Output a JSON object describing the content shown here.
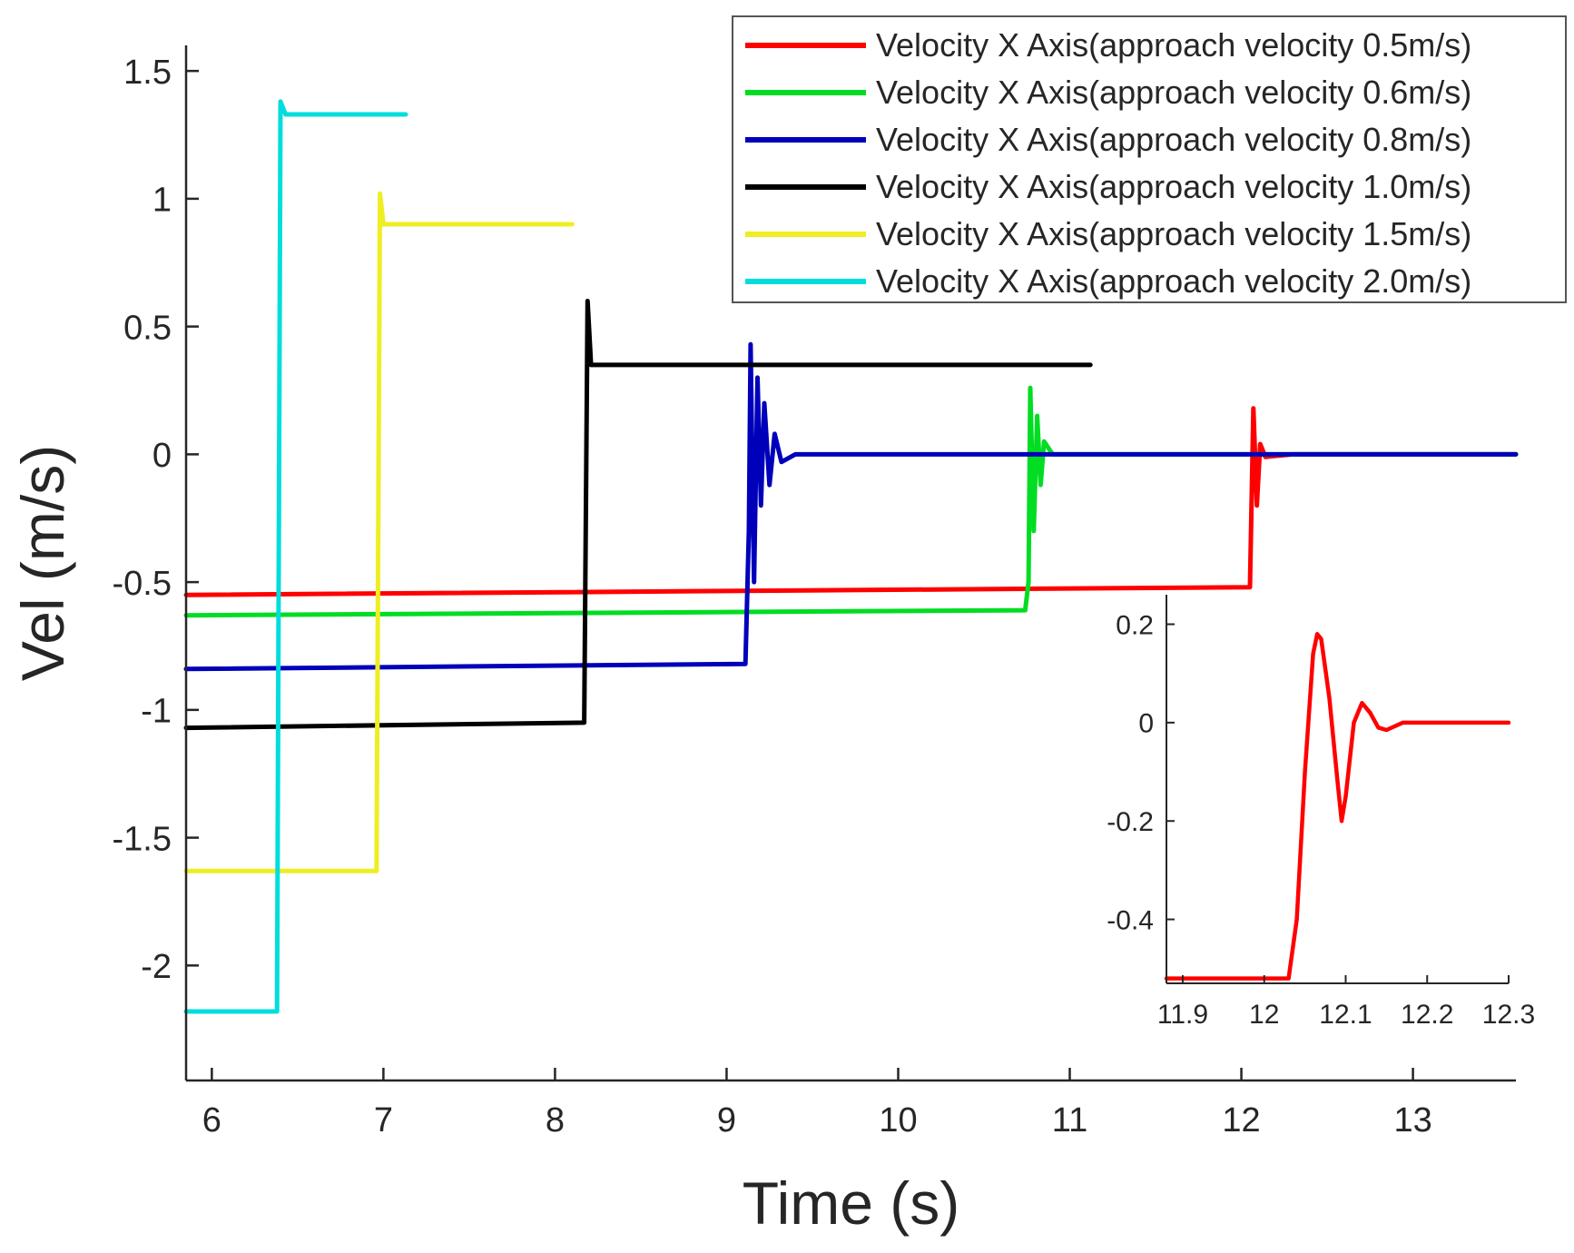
{
  "chart_data": [
    {
      "type": "line",
      "xlabel": "Time (s)",
      "ylabel": "Vel  (m/s)",
      "xlim": [
        5.85,
        13.6
      ],
      "ylim": [
        -2.45,
        1.6
      ],
      "xticks": [
        6,
        7,
        8,
        9,
        10,
        11,
        12,
        13
      ],
      "yticks": [
        1.5,
        1,
        0.5,
        0,
        -0.5,
        -1,
        -1.5,
        -2
      ],
      "xtick_labels": [
        "6",
        "7",
        "8",
        "9",
        "10",
        "11",
        "12",
        "13"
      ],
      "ytick_labels": [
        "1.5",
        "1",
        "0.5",
        "0",
        "-0.5",
        "-1",
        "-1.5",
        "-2"
      ],
      "legend_position": "top-right",
      "series": [
        {
          "name": "Velocity X Axis(approach velocity 0.5m/s)",
          "color": "#ff0000",
          "points": [
            [
              5.85,
              -0.55
            ],
            [
              12.05,
              -0.52
            ],
            [
              12.07,
              0.18
            ],
            [
              12.09,
              -0.2
            ],
            [
              12.11,
              0.04
            ],
            [
              12.14,
              -0.01
            ],
            [
              12.3,
              0.0
            ],
            [
              13.6,
              0.0
            ]
          ]
        },
        {
          "name": "Velocity X Axis(approach velocity 0.6m/s)",
          "color": "#00dd22",
          "points": [
            [
              5.85,
              -0.63
            ],
            [
              10.74,
              -0.61
            ],
            [
              10.76,
              -0.5
            ],
            [
              10.77,
              0.26
            ],
            [
              10.79,
              -0.3
            ],
            [
              10.81,
              0.15
            ],
            [
              10.83,
              -0.12
            ],
            [
              10.85,
              0.05
            ],
            [
              10.9,
              0.0
            ],
            [
              13.6,
              0.0
            ]
          ]
        },
        {
          "name": "Velocity X Axis(approach velocity 0.8m/s)",
          "color": "#0000bb",
          "points": [
            [
              5.85,
              -0.84
            ],
            [
              9.11,
              -0.82
            ],
            [
              9.13,
              -0.3
            ],
            [
              9.14,
              0.43
            ],
            [
              9.16,
              -0.5
            ],
            [
              9.18,
              0.3
            ],
            [
              9.2,
              -0.2
            ],
            [
              9.22,
              0.2
            ],
            [
              9.25,
              -0.12
            ],
            [
              9.28,
              0.08
            ],
            [
              9.32,
              -0.03
            ],
            [
              9.4,
              0.0
            ],
            [
              13.6,
              0.0
            ]
          ]
        },
        {
          "name": "Velocity X Axis(approach velocity 1.0m/s)",
          "color": "#000000",
          "points": [
            [
              5.85,
              -1.07
            ],
            [
              8.17,
              -1.05
            ],
            [
              8.19,
              0.6
            ],
            [
              8.21,
              0.35
            ],
            [
              11.12,
              0.35
            ]
          ]
        },
        {
          "name": "Velocity X Axis(approach velocity 1.5m/s)",
          "color": "#eeee22",
          "points": [
            [
              5.85,
              -1.63
            ],
            [
              6.96,
              -1.63
            ],
            [
              6.98,
              1.02
            ],
            [
              7.0,
              0.9
            ],
            [
              8.1,
              0.9
            ]
          ]
        },
        {
          "name": "Velocity X Axis(approach velocity 2.0m/s)",
          "color": "#00dddd",
          "points": [
            [
              5.85,
              -2.18
            ],
            [
              6.38,
              -2.18
            ],
            [
              6.4,
              1.38
            ],
            [
              6.43,
              1.33
            ],
            [
              7.13,
              1.33
            ]
          ]
        }
      ]
    },
    {
      "type": "line",
      "title": "",
      "xlabel": "",
      "ylabel": "",
      "xlim": [
        11.88,
        12.3
      ],
      "ylim": [
        -0.53,
        0.26
      ],
      "xticks": [
        11.9,
        12,
        12.1,
        12.2,
        12.3
      ],
      "yticks": [
        0.2,
        0,
        -0.2,
        -0.4
      ],
      "xtick_labels": [
        "11.9",
        "12",
        "12.1",
        "12.2",
        "12.3"
      ],
      "ytick_labels": [
        "0.2",
        "0",
        "-0.2",
        "-0.4"
      ],
      "series": [
        {
          "name": "Velocity X Axis(approach velocity 0.5m/s) (zoom)",
          "color": "#ff0000",
          "points": [
            [
              11.88,
              -0.52
            ],
            [
              12.03,
              -0.52
            ],
            [
              12.04,
              -0.4
            ],
            [
              12.05,
              -0.1
            ],
            [
              12.06,
              0.14
            ],
            [
              12.065,
              0.18
            ],
            [
              12.07,
              0.17
            ],
            [
              12.08,
              0.05
            ],
            [
              12.09,
              -0.12
            ],
            [
              12.095,
              -0.2
            ],
            [
              12.1,
              -0.15
            ],
            [
              12.11,
              0.0
            ],
            [
              12.12,
              0.04
            ],
            [
              12.13,
              0.02
            ],
            [
              12.14,
              -0.01
            ],
            [
              12.15,
              -0.015
            ],
            [
              12.17,
              0.0
            ],
            [
              12.3,
              0.0
            ]
          ]
        }
      ]
    }
  ]
}
